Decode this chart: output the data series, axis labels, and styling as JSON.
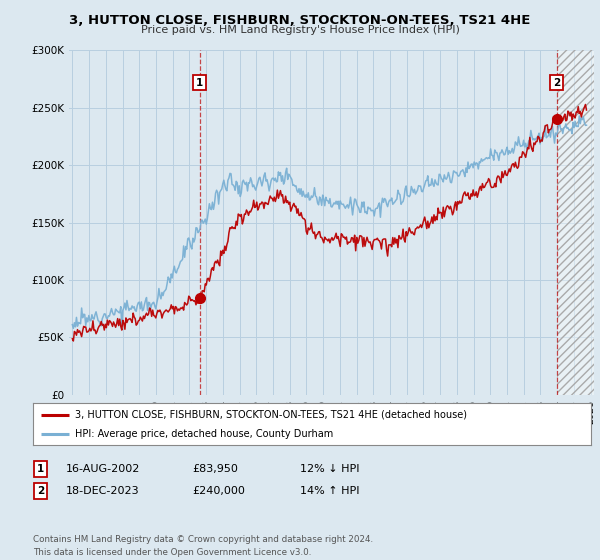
{
  "title": "3, HUTTON CLOSE, FISHBURN, STOCKTON-ON-TEES, TS21 4HE",
  "subtitle": "Price paid vs. HM Land Registry's House Price Index (HPI)",
  "sale1_date": "16-AUG-2002",
  "sale1_price": 83950,
  "sale1_hpi": "12% ↓ HPI",
  "sale2_date": "18-DEC-2023",
  "sale2_price": 240000,
  "sale2_hpi": "14% ↑ HPI",
  "legend_line1": "3, HUTTON CLOSE, FISHBURN, STOCKTON-ON-TEES, TS21 4HE (detached house)",
  "legend_line2": "HPI: Average price, detached house, County Durham",
  "footer": "Contains HM Land Registry data © Crown copyright and database right 2024.\nThis data is licensed under the Open Government Licence v3.0.",
  "red_color": "#bb0000",
  "blue_color": "#7ab0d4",
  "background_color": "#dce8f0",
  "plot_bg_color": "#dce8f0",
  "grid_color": "#b8cfe0",
  "ylim": [
    0,
    300000
  ],
  "yticks": [
    0,
    50000,
    100000,
    150000,
    200000,
    250000,
    300000
  ],
  "sale1_x": 2002.625,
  "sale2_x": 2023.958
}
